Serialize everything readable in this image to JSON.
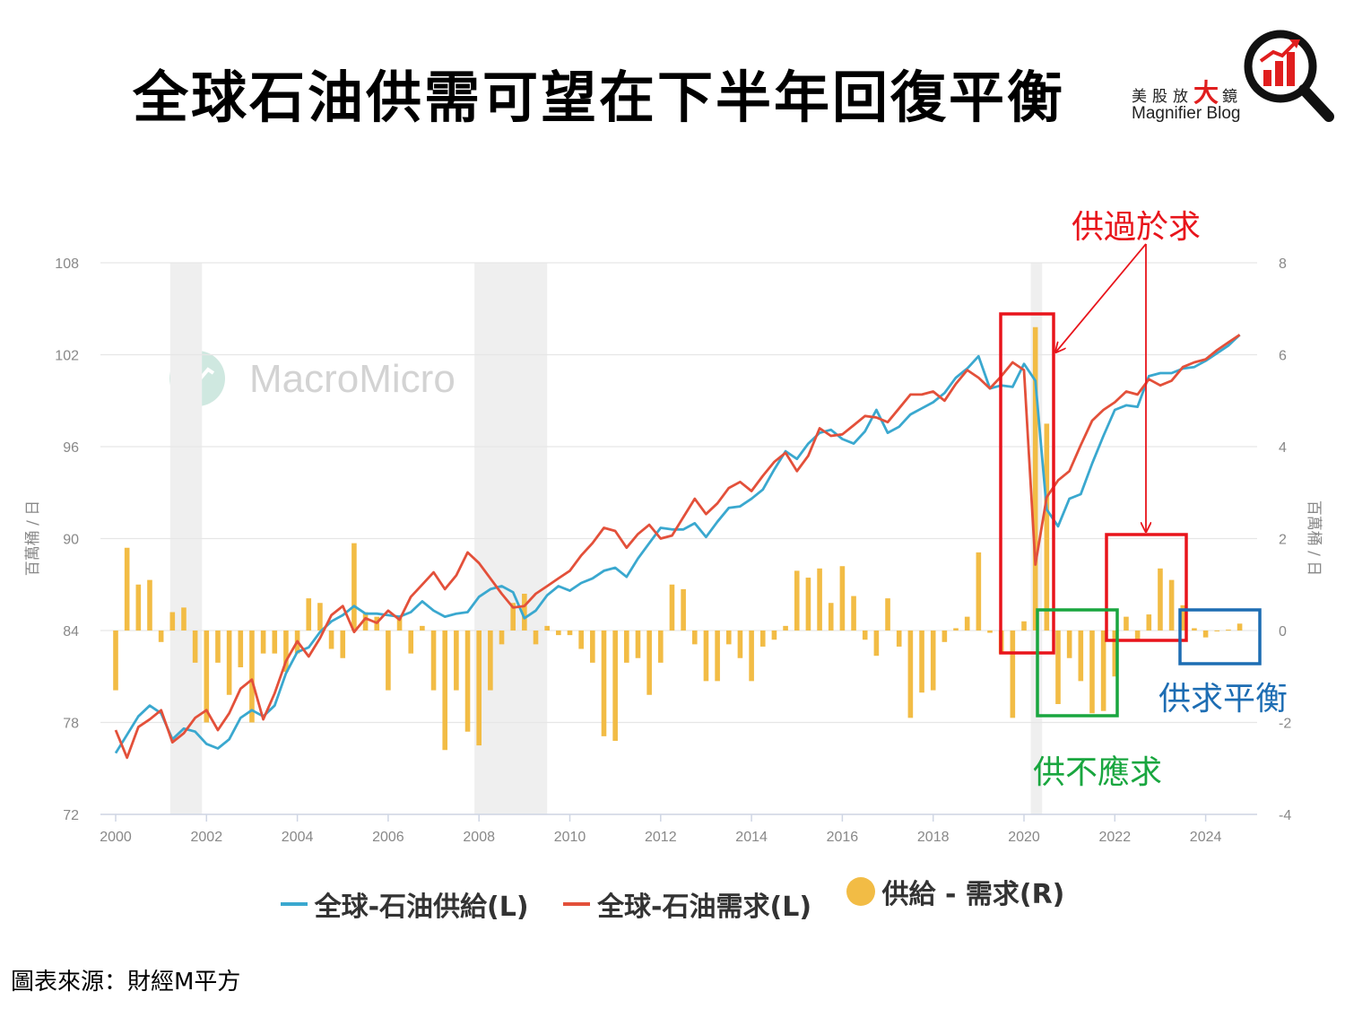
{
  "title": "全球石油供需可望在下半年回復平衡",
  "logo": {
    "cn_prefix": "美股放",
    "cn_big": "大",
    "cn_suffix": "鏡",
    "en": "Magnifier Blog",
    "icon": "magnifier-chart-icon",
    "accent": "#e01e1e"
  },
  "watermark": {
    "text": "MacroMicro",
    "icon": "macromicro-logo-icon"
  },
  "source": "圖表來源：財經M平方",
  "annotations": {
    "oversupply": "供過於求",
    "undersupply": "供不應求",
    "balance": "供求平衡"
  },
  "colors": {
    "supply": "#3aa8cf",
    "demand": "#e3503a",
    "diff": "#f2bc45",
    "red_box": "#e8141b",
    "green_box": "#19a63f",
    "blue_box": "#1d6db3",
    "recession": "#efefef",
    "grid": "#e6e6e6",
    "axis_text": "#888888"
  },
  "chart_data": {
    "type": "line",
    "left_axis": {
      "label": "百萬桶 / 日",
      "min": 72,
      "max": 108,
      "ticks": [
        72,
        78,
        84,
        90,
        96,
        102,
        108
      ]
    },
    "right_axis": {
      "label": "百萬桶 / 日",
      "min": -4,
      "max": 8,
      "ticks": [
        -4,
        -2,
        0,
        2,
        4,
        6,
        8
      ]
    },
    "x_axis": {
      "ticks": [
        "2000",
        "2002",
        "2004",
        "2006",
        "2008",
        "2010",
        "2012",
        "2014",
        "2016",
        "2018",
        "2020",
        "2022",
        "2024"
      ]
    },
    "recession_shading": [
      [
        2001.2,
        2001.9
      ],
      [
        2007.9,
        2009.5
      ],
      [
        2020.15,
        2020.4
      ]
    ],
    "x": [
      2000.0,
      2000.25,
      2000.5,
      2000.75,
      2001.0,
      2001.25,
      2001.5,
      2001.75,
      2002.0,
      2002.25,
      2002.5,
      2002.75,
      2003.0,
      2003.25,
      2003.5,
      2003.75,
      2004.0,
      2004.25,
      2004.5,
      2004.75,
      2005.0,
      2005.25,
      2005.5,
      2005.75,
      2006.0,
      2006.25,
      2006.5,
      2006.75,
      2007.0,
      2007.25,
      2007.5,
      2007.75,
      2008.0,
      2008.25,
      2008.5,
      2008.75,
      2009.0,
      2009.25,
      2009.5,
      2009.75,
      2010.0,
      2010.25,
      2010.5,
      2010.75,
      2011.0,
      2011.25,
      2011.5,
      2011.75,
      2012.0,
      2012.25,
      2012.5,
      2012.75,
      2013.0,
      2013.25,
      2013.5,
      2013.75,
      2014.0,
      2014.25,
      2014.5,
      2014.75,
      2015.0,
      2015.25,
      2015.5,
      2015.75,
      2016.0,
      2016.25,
      2016.5,
      2016.75,
      2017.0,
      2017.25,
      2017.5,
      2017.75,
      2018.0,
      2018.25,
      2018.5,
      2018.75,
      2019.0,
      2019.25,
      2019.5,
      2019.75,
      2020.0,
      2020.25,
      2020.5,
      2020.75,
      2021.0,
      2021.25,
      2021.5,
      2021.75,
      2022.0,
      2022.25,
      2022.5,
      2022.75,
      2023.0,
      2023.25,
      2023.5,
      2023.75,
      2024.0,
      2024.25,
      2024.5,
      2024.75
    ],
    "series": [
      {
        "name": "全球-石油供給(L)",
        "axis": "left",
        "type": "line",
        "values": [
          76.0,
          77.2,
          78.4,
          79.1,
          78.6,
          76.9,
          77.6,
          77.4,
          76.6,
          76.3,
          76.9,
          78.3,
          78.8,
          78.4,
          79.1,
          81.2,
          82.6,
          82.9,
          83.9,
          84.6,
          85.0,
          85.6,
          85.1,
          85.1,
          85.0,
          84.9,
          85.2,
          85.9,
          85.3,
          84.9,
          85.1,
          85.2,
          86.2,
          86.7,
          86.9,
          86.5,
          84.8,
          85.3,
          86.3,
          86.9,
          86.6,
          87.1,
          87.4,
          87.9,
          88.1,
          87.5,
          88.7,
          89.7,
          90.7,
          90.6,
          90.6,
          91.0,
          90.1,
          91.1,
          92.0,
          92.1,
          92.6,
          93.2,
          94.5,
          95.7,
          95.2,
          96.2,
          96.9,
          97.1,
          96.5,
          96.2,
          97.0,
          98.4,
          96.9,
          97.3,
          98.1,
          98.5,
          98.9,
          99.5,
          100.5,
          101.1,
          101.9,
          99.8,
          100.0,
          99.9,
          101.4,
          100.3,
          91.9,
          90.8,
          92.6,
          92.9,
          94.9,
          96.7,
          98.4,
          98.7,
          98.6,
          100.6,
          100.8,
          100.8,
          101.1,
          101.2,
          101.6,
          102.1,
          102.6,
          103.3
        ]
      },
      {
        "name": "全球-石油需求(L)",
        "axis": "left",
        "type": "line",
        "values": [
          77.5,
          75.7,
          77.7,
          78.2,
          78.8,
          76.7,
          77.3,
          78.3,
          78.8,
          77.5,
          78.6,
          80.2,
          80.8,
          78.2,
          79.9,
          82.0,
          83.3,
          82.3,
          83.5,
          85.0,
          85.6,
          83.9,
          84.8,
          84.5,
          85.3,
          84.7,
          86.2,
          87.0,
          87.8,
          86.7,
          87.6,
          89.1,
          88.4,
          87.4,
          86.4,
          85.5,
          85.6,
          86.4,
          86.9,
          87.4,
          87.9,
          88.9,
          89.7,
          90.7,
          90.5,
          89.4,
          90.3,
          90.9,
          90.0,
          90.2,
          91.4,
          92.6,
          91.6,
          92.3,
          93.3,
          93.7,
          93.1,
          94.1,
          95.0,
          95.6,
          94.4,
          95.4,
          97.2,
          96.7,
          96.8,
          97.4,
          98.0,
          97.9,
          97.6,
          98.5,
          99.4,
          99.4,
          99.6,
          99.0,
          100.1,
          101.0,
          100.5,
          99.8,
          100.6,
          101.5,
          101.0,
          88.3,
          92.7,
          93.8,
          94.4,
          96.1,
          97.7,
          98.4,
          98.9,
          99.6,
          99.4,
          100.4,
          100.0,
          100.3,
          101.2,
          101.5,
          101.7,
          102.3,
          102.8,
          103.3
        ]
      },
      {
        "name": "供給 - 需求(R)",
        "axis": "right",
        "type": "bar",
        "values": [
          -1.3,
          1.8,
          1.0,
          1.1,
          -0.25,
          0.4,
          0.5,
          -0.7,
          -2.0,
          -0.7,
          -1.4,
          -0.8,
          -2.0,
          -0.5,
          -0.5,
          -0.9,
          -0.5,
          0.7,
          0.6,
          -0.4,
          -0.6,
          1.9,
          0.4,
          0.3,
          -1.3,
          0.3,
          -0.5,
          0.1,
          -1.3,
          -2.6,
          -1.3,
          -2.2,
          -2.5,
          -1.3,
          -0.3,
          0.6,
          0.8,
          -0.3,
          0.1,
          -0.1,
          -0.1,
          -0.4,
          -0.7,
          -2.3,
          -2.4,
          -0.7,
          -0.6,
          -1.4,
          -0.7,
          1.0,
          0.9,
          -0.3,
          -1.1,
          -1.1,
          -0.3,
          -0.6,
          -1.1,
          -0.35,
          -0.2,
          0.1,
          1.3,
          1.15,
          1.35,
          0.6,
          1.4,
          0.75,
          -0.2,
          -0.55,
          0.7,
          -0.35,
          -1.9,
          -1.35,
          -1.3,
          -0.25,
          0.05,
          0.3,
          1.7,
          -0.05,
          -0.5,
          -1.9,
          0.2,
          6.6,
          4.5,
          -1.6,
          -0.6,
          -1.1,
          -1.8,
          -1.75,
          -1.0,
          0.3,
          -0.2,
          0.35,
          1.35,
          1.1,
          0.55,
          0.05,
          -0.15,
          0.0,
          0.02,
          0.15
        ]
      }
    ]
  }
}
